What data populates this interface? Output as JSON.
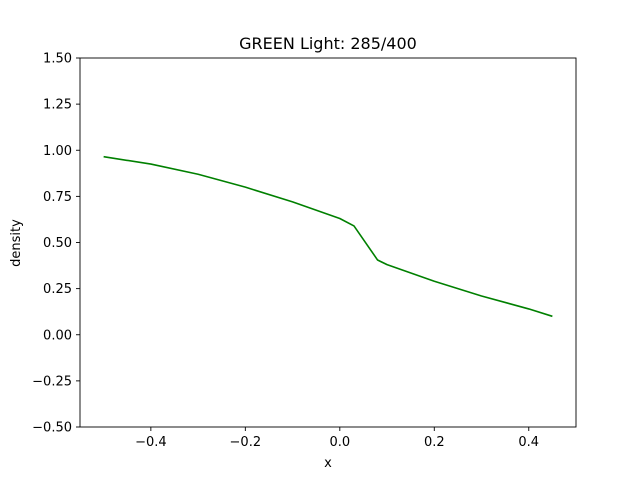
{
  "chart_data": {
    "type": "line",
    "title": "GREEN Light: 285/400",
    "xlabel": "x",
    "ylabel": "density",
    "xlim": [
      -0.55,
      0.5
    ],
    "ylim": [
      -0.5,
      1.5
    ],
    "xticks": [
      -0.4,
      -0.2,
      0.0,
      0.2,
      0.4
    ],
    "xtick_labels": [
      "−0.4",
      "−0.2",
      "0.0",
      "0.2",
      "0.4"
    ],
    "yticks": [
      -0.5,
      -0.25,
      0.0,
      0.25,
      0.5,
      0.75,
      1.0,
      1.25,
      1.5
    ],
    "ytick_labels": [
      "−0.50",
      "−0.25",
      "0.00",
      "0.25",
      "0.50",
      "0.75",
      "1.00",
      "1.25",
      "1.50"
    ],
    "grid": false,
    "series": [
      {
        "color": "#008000",
        "x": [
          -0.5,
          -0.4,
          -0.3,
          -0.2,
          -0.1,
          0.0,
          0.03,
          0.08,
          0.1,
          0.2,
          0.3,
          0.4,
          0.45
        ],
        "y": [
          0.965,
          0.925,
          0.87,
          0.8,
          0.72,
          0.63,
          0.59,
          0.405,
          0.38,
          0.29,
          0.21,
          0.14,
          0.1
        ]
      }
    ]
  }
}
